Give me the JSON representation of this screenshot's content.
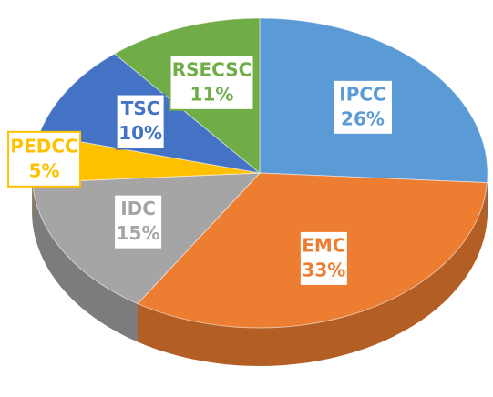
{
  "chart_data": {
    "type": "pie",
    "categories": [
      "IPCC",
      "EMC",
      "IDC",
      "PEDCC",
      "TSC",
      "RSECSC"
    ],
    "values": [
      26,
      33,
      15,
      5,
      10,
      11
    ],
    "value_labels": [
      "26%",
      "33%",
      "15%",
      "5%",
      "10%",
      "11%"
    ],
    "colors": [
      "#5b9bd5",
      "#ed7d31",
      "#a5a5a5",
      "#ffc000",
      "#4472c4",
      "#70ad47"
    ]
  }
}
